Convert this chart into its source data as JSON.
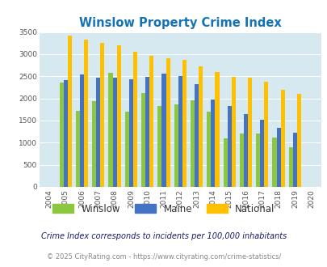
{
  "title": "Winslow Property Crime Index",
  "years": [
    2004,
    2005,
    2006,
    2007,
    2008,
    2009,
    2010,
    2011,
    2012,
    2013,
    2014,
    2015,
    2016,
    2017,
    2018,
    2019,
    2020
  ],
  "winslow": [
    0,
    2350,
    1720,
    1930,
    2580,
    1700,
    2130,
    1820,
    1870,
    1950,
    1700,
    1090,
    1210,
    1210,
    1110,
    890,
    0
  ],
  "maine": [
    0,
    2420,
    2540,
    2460,
    2460,
    2430,
    2490,
    2560,
    2510,
    2320,
    1980,
    1820,
    1640,
    1510,
    1340,
    1230,
    0
  ],
  "national": [
    0,
    3420,
    3330,
    3260,
    3200,
    3050,
    2960,
    2910,
    2870,
    2720,
    2590,
    2490,
    2460,
    2380,
    2200,
    2110,
    0
  ],
  "winslow_color": "#8dc63f",
  "maine_color": "#4472c4",
  "national_color": "#ffc000",
  "bg_color": "#d6e8f0",
  "ylim": [
    0,
    3500
  ],
  "yticks": [
    0,
    500,
    1000,
    1500,
    2000,
    2500,
    3000,
    3500
  ],
  "footnote1": "Crime Index corresponds to incidents per 100,000 inhabitants",
  "footnote2": "© 2025 CityRating.com - https://www.cityrating.com/crime-statistics/",
  "title_color": "#1473b5",
  "footnote1_color": "#1a1a6e",
  "footnote2_color": "#888888",
  "legend_label_color": "#5c3317",
  "bar_width": 0.25
}
